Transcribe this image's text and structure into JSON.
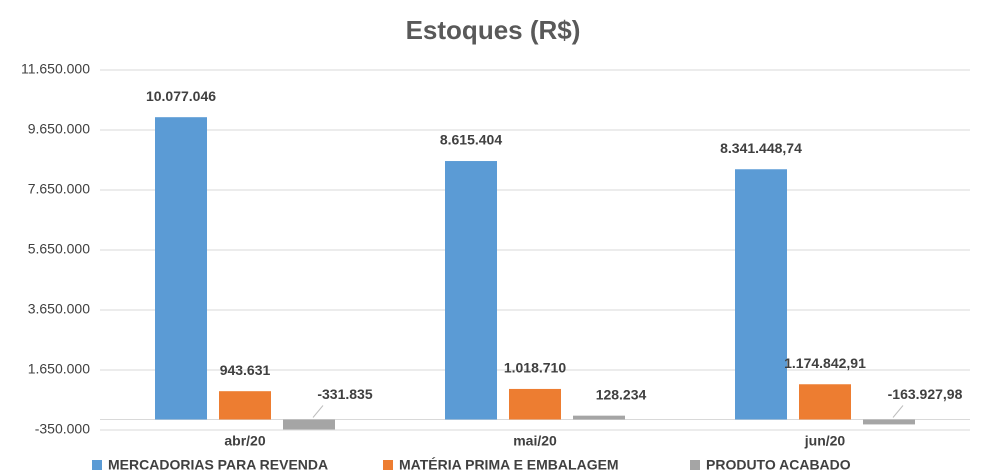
{
  "chart_data": {
    "type": "bar",
    "title": "Estoques (R$)",
    "categories": [
      "abr/20",
      "mai/20",
      "jun/20"
    ],
    "series": [
      {
        "name": "MERCADORIAS PARA REVENDA",
        "color": "#5b9bd5",
        "values": [
          10077046,
          8615404,
          8341448.74
        ],
        "value_labels": [
          "10.077.046",
          "8.615.404",
          "8.341.448,74"
        ]
      },
      {
        "name": "MATÉRIA PRIMA E EMBALAGEM",
        "color": "#ed7d31",
        "values": [
          943631,
          1018710,
          1174842.91
        ],
        "value_labels": [
          "943.631",
          "1.018.710",
          "1.174.842,91"
        ]
      },
      {
        "name": "PRODUTO ACABADO",
        "color": "#a5a5a5",
        "values": [
          -331835,
          128234,
          -163927.98
        ],
        "value_labels": [
          "-331.835",
          "128.234",
          "-163.927,98"
        ]
      }
    ],
    "ylim": [
      -350000,
      11650000
    ],
    "yticks": [
      {
        "value": -350000,
        "label": "-350.000"
      },
      {
        "value": 1650000,
        "label": "1.650.000"
      },
      {
        "value": 3650000,
        "label": "3.650.000"
      },
      {
        "value": 5650000,
        "label": "5.650.000"
      },
      {
        "value": 7650000,
        "label": "7.650.000"
      },
      {
        "value": 9650000,
        "label": "9.650.000"
      },
      {
        "value": 11650000,
        "label": "11.650.000"
      }
    ],
    "grid": true,
    "legend": "bottom"
  }
}
